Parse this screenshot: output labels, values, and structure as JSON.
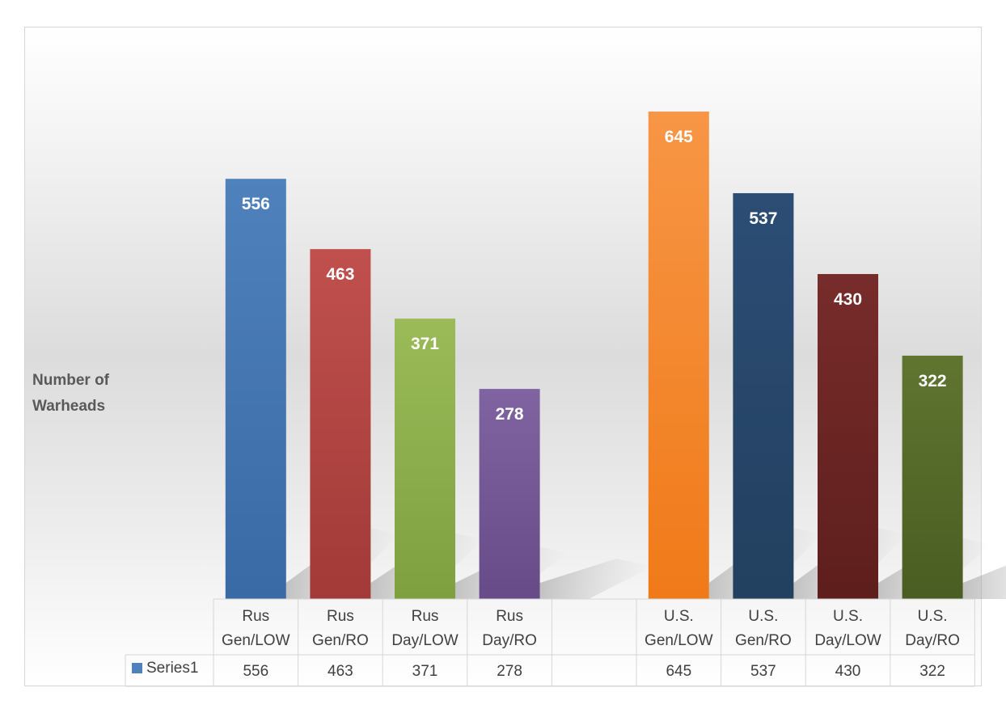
{
  "chart_data": {
    "type": "bar",
    "title": "",
    "xlabel": "",
    "ylabel": "Number of Warheads",
    "ylim": [
      0,
      700
    ],
    "grid": false,
    "legend": "data-table",
    "categories": [
      {
        "line1": "Rus",
        "line2": "Gen/LOW"
      },
      {
        "line1": "Rus",
        "line2": "Gen/RO"
      },
      {
        "line1": "Rus",
        "line2": "Day/LOW"
      },
      {
        "line1": "Rus",
        "line2": "Day/RO"
      },
      {
        "line1": "",
        "line2": ""
      },
      {
        "line1": "U.S.",
        "line2": "Gen/LOW"
      },
      {
        "line1": "U.S.",
        "line2": "Gen/RO"
      },
      {
        "line1": "U.S.",
        "line2": "Day/LOW"
      },
      {
        "line1": "U.S.",
        "line2": "Day/RO"
      }
    ],
    "series": [
      {
        "name": "Series1",
        "values": [
          556,
          463,
          371,
          278,
          null,
          645,
          537,
          430,
          322
        ],
        "value_labels": [
          "556",
          "463",
          "371",
          "278",
          "",
          "645",
          "537",
          "430",
          "322"
        ]
      }
    ],
    "legend_color": "#4f81bd",
    "bar_colors": [
      [
        "#4f81bd",
        "#3a6aa5"
      ],
      [
        "#c0504d",
        "#a23a37"
      ],
      [
        "#9bbb59",
        "#7fa03f"
      ],
      [
        "#8064a2",
        "#674b89"
      ],
      [
        "#ffffff",
        "#ffffff"
      ],
      [
        "#f79646",
        "#f07a18"
      ],
      [
        "#2c4d75",
        "#22405f"
      ],
      [
        "#772c2a",
        "#5e1e1c"
      ],
      [
        "#5f7530",
        "#4a5d22"
      ]
    ]
  }
}
